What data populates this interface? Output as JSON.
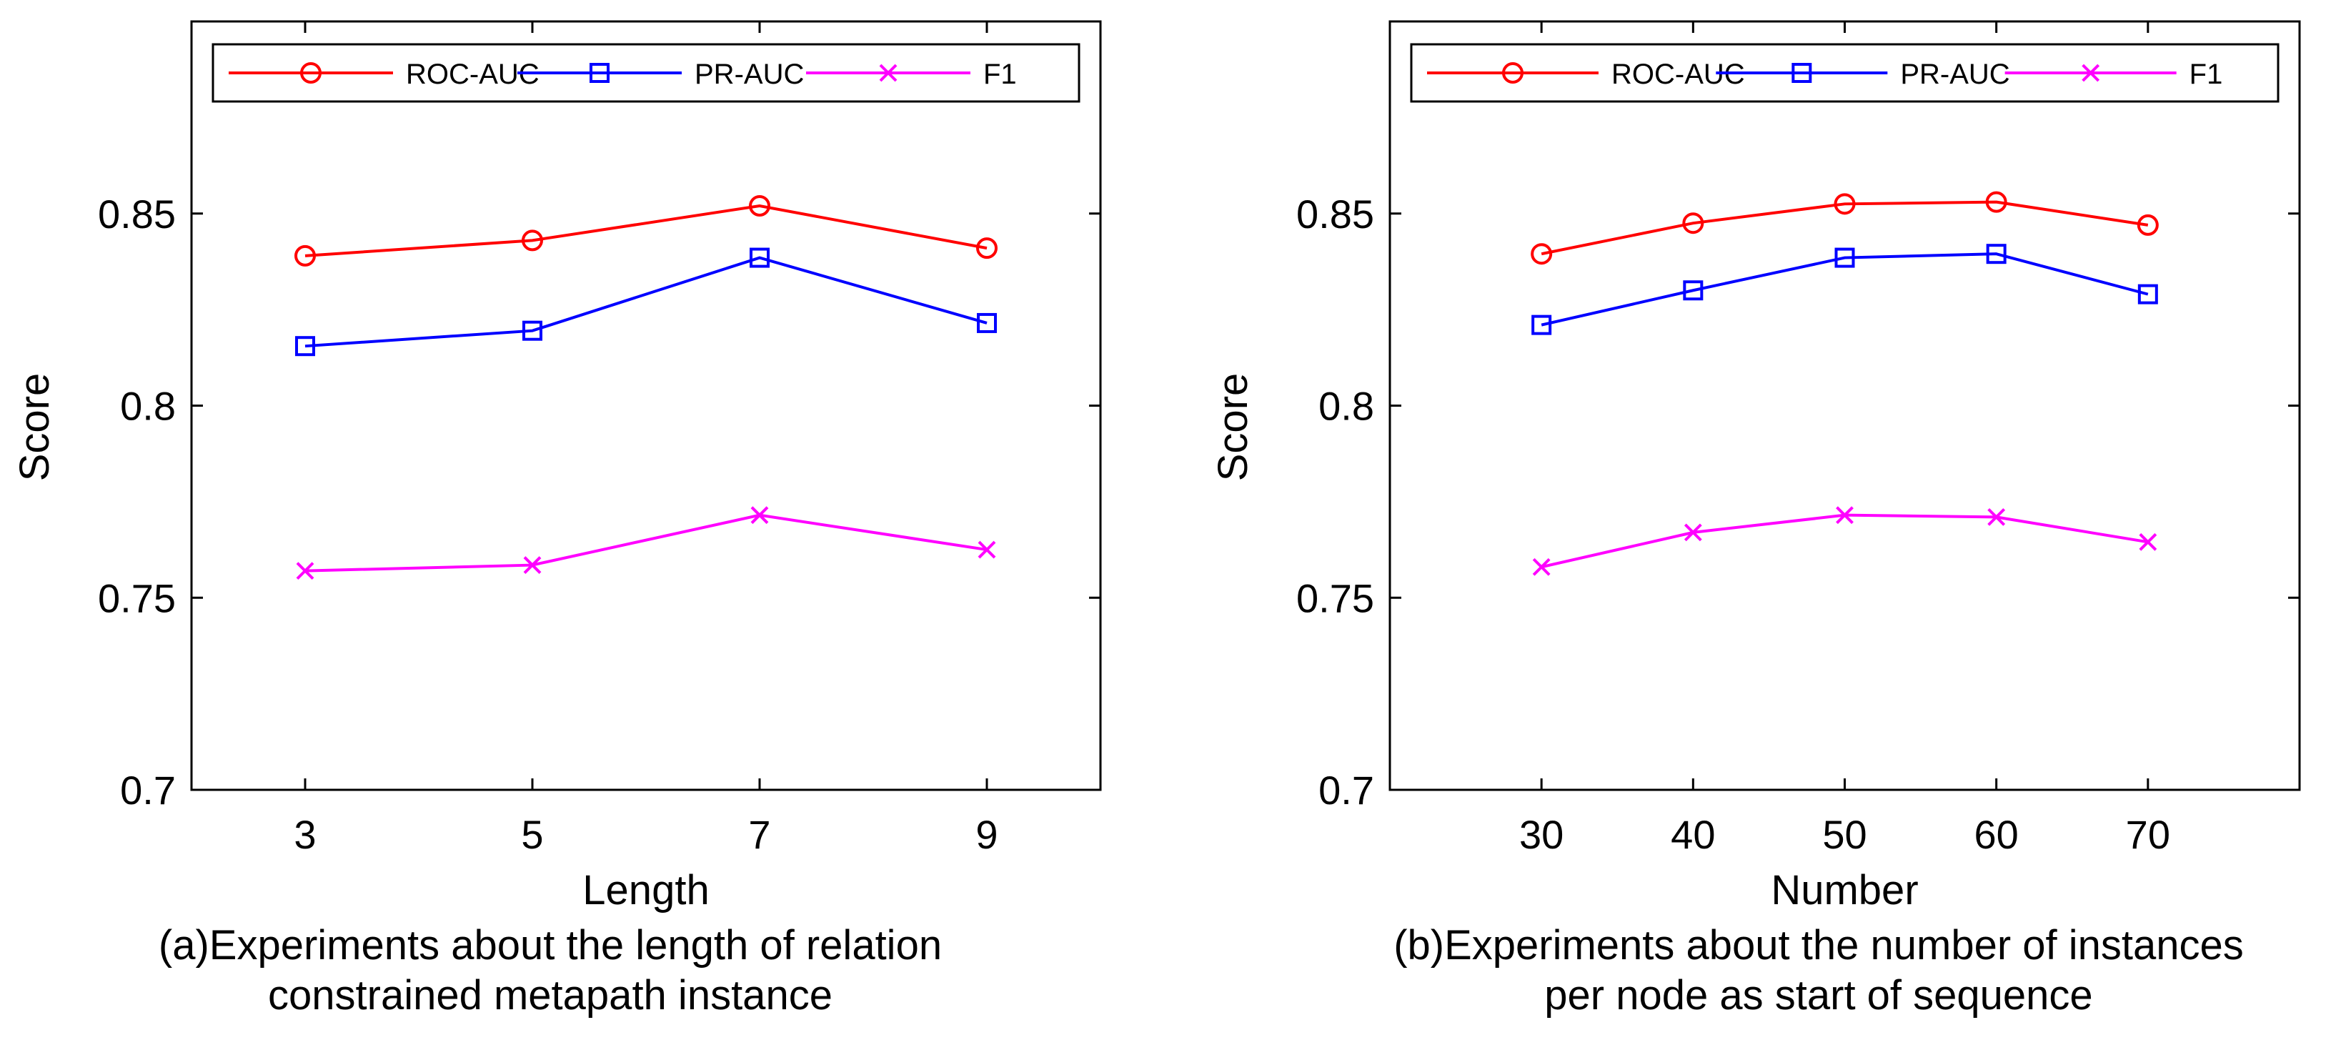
{
  "chart_data": [
    {
      "type": "line",
      "title": "",
      "xlabel": "Length",
      "ylabel": "Score",
      "x": [
        3,
        5,
        7,
        9
      ],
      "xticks": [
        "3",
        "5",
        "7",
        "9"
      ],
      "xlim": [
        2,
        10
      ],
      "ylim": [
        0.7,
        0.9
      ],
      "yticks": [
        "0.7",
        "0.75",
        "0.8",
        "0.85"
      ],
      "ytick_values": [
        0.7,
        0.75,
        0.8,
        0.85
      ],
      "grid": false,
      "legend": "top",
      "series": [
        {
          "name": "ROC-AUC",
          "color": "#ff0000",
          "marker": "circle",
          "values": [
            0.839,
            0.843,
            0.852,
            0.841
          ]
        },
        {
          "name": "PR-AUC",
          "color": "#0000ff",
          "marker": "square",
          "values": [
            0.8155,
            0.8195,
            0.8385,
            0.8215
          ]
        },
        {
          "name": "F1",
          "color": "#ff00ff",
          "marker": "x",
          "values": [
            0.757,
            0.7585,
            0.7715,
            0.7625
          ]
        }
      ],
      "caption_line1": "(a)Experiments about the length of relation",
      "caption_line2": "constrained metapath instance"
    },
    {
      "type": "line",
      "title": "",
      "xlabel": "Number",
      "ylabel": "Score",
      "x": [
        30,
        40,
        50,
        60,
        70
      ],
      "xticks": [
        "30",
        "40",
        "50",
        "60",
        "70"
      ],
      "xlim": [
        20,
        80
      ],
      "ylim": [
        0.7,
        0.9
      ],
      "yticks": [
        "0.7",
        "0.75",
        "0.8",
        "0.85"
      ],
      "ytick_values": [
        0.7,
        0.75,
        0.8,
        0.85
      ],
      "grid": false,
      "legend": "top",
      "series": [
        {
          "name": "ROC-AUC",
          "color": "#ff0000",
          "marker": "circle",
          "values": [
            0.8395,
            0.8475,
            0.8525,
            0.853,
            0.847
          ]
        },
        {
          "name": "PR-AUC",
          "color": "#0000ff",
          "marker": "square",
          "values": [
            0.821,
            0.83,
            0.8385,
            0.8395,
            0.829
          ]
        },
        {
          "name": "F1",
          "color": "#ff00ff",
          "marker": "x",
          "values": [
            0.758,
            0.767,
            0.7715,
            0.771,
            0.7645
          ]
        }
      ],
      "caption_line1": "(b)Experiments about the number of instances",
      "caption_line2": "per node as start of sequence"
    }
  ]
}
